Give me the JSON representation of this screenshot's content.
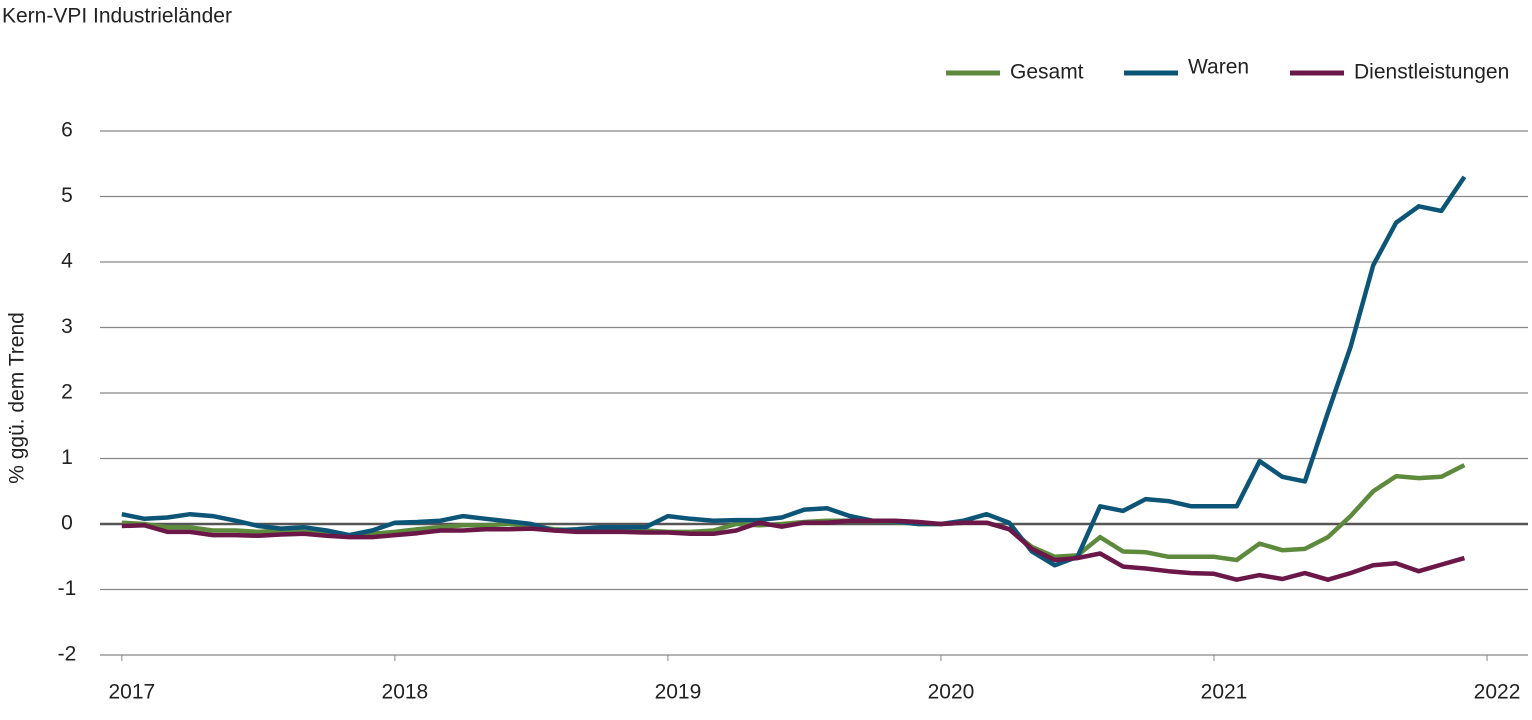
{
  "chart_data": {
    "type": "line",
    "title": "Kern-VPI Industrieländer",
    "y_label": "% ggü. dem Trend",
    "x": [
      2017.0,
      2017.083,
      2017.167,
      2017.25,
      2017.333,
      2017.417,
      2017.5,
      2017.583,
      2017.667,
      2017.75,
      2017.833,
      2017.917,
      2018.0,
      2018.083,
      2018.167,
      2018.25,
      2018.333,
      2018.417,
      2018.5,
      2018.583,
      2018.667,
      2018.75,
      2018.833,
      2018.917,
      2019.0,
      2019.083,
      2019.167,
      2019.25,
      2019.333,
      2019.417,
      2019.5,
      2019.583,
      2019.667,
      2019.75,
      2019.833,
      2019.917,
      2020.0,
      2020.083,
      2020.167,
      2020.25,
      2020.333,
      2020.417,
      2020.5,
      2020.583,
      2020.667,
      2020.75,
      2020.833,
      2020.917,
      2021.0,
      2021.083,
      2021.167,
      2021.25,
      2021.333,
      2021.417,
      2021.5,
      2021.583,
      2021.667,
      2021.75,
      2021.833,
      2021.917
    ],
    "series": [
      {
        "name": "Gesamt",
        "color": "#5e8a3e",
        "values": [
          0.02,
          0.0,
          -0.05,
          -0.05,
          -0.1,
          -0.1,
          -0.12,
          -0.1,
          -0.12,
          -0.15,
          -0.18,
          -0.15,
          -0.12,
          -0.08,
          -0.05,
          -0.02,
          -0.02,
          0.0,
          -0.03,
          -0.08,
          -0.1,
          -0.1,
          -0.1,
          -0.1,
          -0.12,
          -0.12,
          -0.1,
          0.0,
          -0.02,
          0.0,
          0.03,
          0.05,
          0.05,
          0.05,
          0.03,
          0.0,
          0.0,
          0.02,
          0.02,
          -0.08,
          -0.35,
          -0.5,
          -0.48,
          -0.2,
          -0.42,
          -0.43,
          -0.5,
          -0.5,
          -0.5,
          -0.55,
          -0.3,
          -0.4,
          -0.38,
          -0.2,
          0.12,
          0.5,
          0.73,
          0.7,
          0.72,
          0.9
        ]
      },
      {
        "name": "Waren",
        "color": "#0d5577",
        "values": [
          0.15,
          0.08,
          0.1,
          0.15,
          0.12,
          0.05,
          -0.03,
          -0.07,
          -0.05,
          -0.1,
          -0.17,
          -0.1,
          0.02,
          0.03,
          0.05,
          0.12,
          0.08,
          0.04,
          0.0,
          -0.1,
          -0.08,
          -0.05,
          -0.05,
          -0.05,
          0.12,
          0.08,
          0.05,
          0.06,
          0.06,
          0.1,
          0.22,
          0.24,
          0.12,
          0.05,
          0.04,
          0.0,
          0.0,
          0.05,
          0.15,
          0.02,
          -0.42,
          -0.63,
          -0.5,
          0.27,
          0.2,
          0.38,
          0.35,
          0.27,
          0.27,
          0.27,
          0.96,
          0.72,
          0.65,
          1.7,
          2.7,
          3.95,
          4.6,
          4.85,
          4.78,
          5.3
        ]
      },
      {
        "name": "Dienstleistungen",
        "color": "#6b1748",
        "values": [
          -0.03,
          -0.02,
          -0.12,
          -0.12,
          -0.17,
          -0.17,
          -0.18,
          -0.16,
          -0.15,
          -0.18,
          -0.2,
          -0.2,
          -0.17,
          -0.14,
          -0.1,
          -0.1,
          -0.08,
          -0.08,
          -0.07,
          -0.1,
          -0.12,
          -0.12,
          -0.12,
          -0.13,
          -0.13,
          -0.15,
          -0.15,
          -0.1,
          0.02,
          -0.04,
          0.02,
          0.02,
          0.05,
          0.05,
          0.05,
          0.03,
          0.0,
          0.02,
          0.02,
          -0.08,
          -0.38,
          -0.55,
          -0.52,
          -0.45,
          -0.65,
          -0.68,
          -0.72,
          -0.75,
          -0.76,
          -0.85,
          -0.78,
          -0.84,
          -0.75,
          -0.85,
          -0.75,
          -0.63,
          -0.6,
          -0.72,
          -0.62,
          -0.52
        ]
      }
    ],
    "xlim": [
      2016.92,
      2022.15
    ],
    "xticks": [
      2017,
      2018,
      2019,
      2020,
      2021,
      2022
    ],
    "ylim": [
      -2,
      6
    ],
    "yticks": [
      -2,
      -1,
      0,
      1,
      2,
      3,
      4,
      5,
      6
    ],
    "grid": true,
    "legend": "top-right"
  }
}
